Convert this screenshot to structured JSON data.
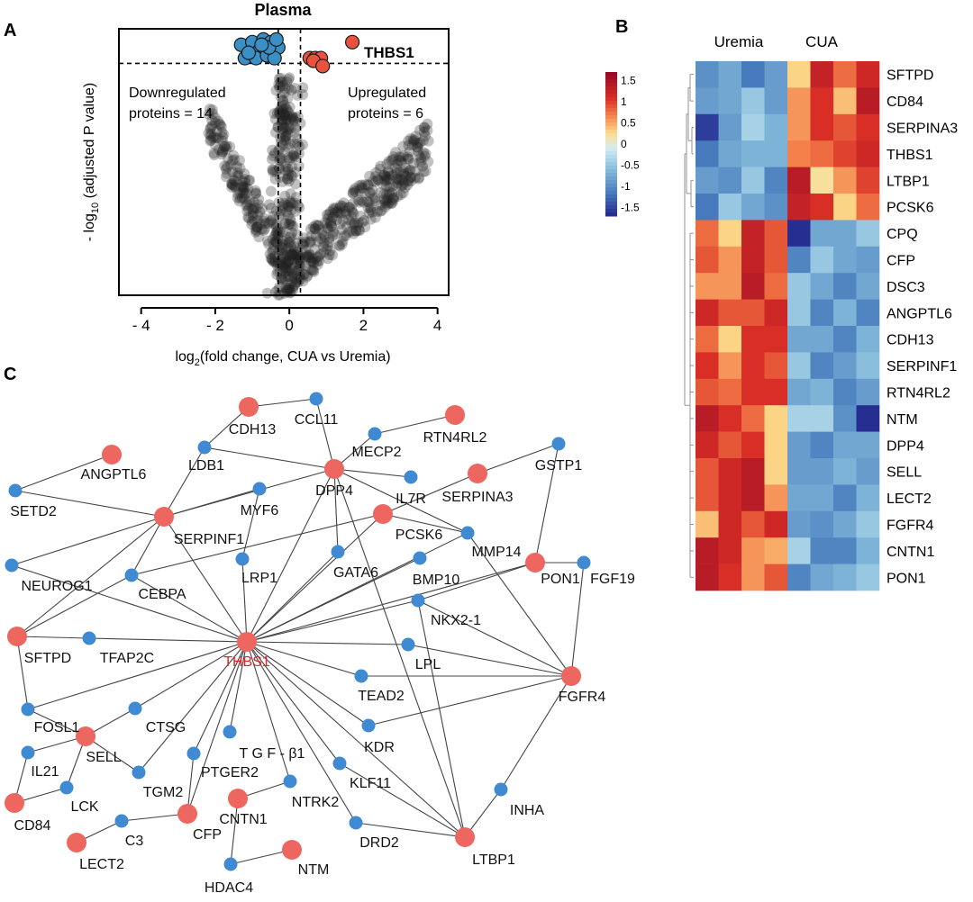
{
  "panels": {
    "A": "A",
    "B": "B",
    "C": "C"
  },
  "volcano": {
    "title": "Plasma",
    "ylabel_main": "- log",
    "ylabel_sub": "10",
    "ylabel_rest": " (adjusted P value)",
    "xlabel_main": "log",
    "xlabel_sub": "2",
    "xlabel_rest": "(fold change, CUA vs Uremia)",
    "down_text_1": "Downregulated",
    "down_text_2": "proteins = 14",
    "up_text_1": "Upregulated",
    "up_text_2": "proteins = 6",
    "highlight_label": "THBS1",
    "colors": {
      "down": "#3a8fc4",
      "up": "#e8523f",
      "bg_point": "#222222"
    }
  },
  "chart_data": [
    {
      "type": "scatter",
      "title": "Plasma",
      "xlabel": "log2(fold change, CUA vs Uremia)",
      "ylabel": "- log10 (adjusted P value)",
      "xlim": [
        -4.6,
        4.3
      ],
      "ylim": [
        0,
        10
      ],
      "x_ticks": [
        -4,
        -2,
        0,
        2,
        4
      ],
      "x_tick_labels": [
        "- 4",
        "- 2",
        "0",
        "2",
        "4"
      ],
      "significance_threshold_y": 8.7,
      "fold_change_thresholds_x": [
        -0.3,
        0.3
      ],
      "series": [
        {
          "name": "Downregulated",
          "points": [
            [
              -1.3,
              9.4
            ],
            [
              -1.0,
              9.5
            ],
            [
              -0.7,
              9.6
            ],
            [
              -0.5,
              9.5
            ],
            [
              -0.3,
              9.3
            ],
            [
              -0.8,
              9.2
            ],
            [
              -1.2,
              8.9
            ],
            [
              -0.9,
              8.9
            ],
            [
              -0.6,
              9.0
            ],
            [
              -0.4,
              8.9
            ],
            [
              -1.1,
              9.1
            ],
            [
              -0.55,
              9.3
            ],
            [
              -0.35,
              9.6
            ],
            [
              -0.75,
              9.4
            ]
          ]
        },
        {
          "name": "Upregulated",
          "points": [
            [
              0.55,
              8.9
            ],
            [
              0.7,
              8.9
            ],
            [
              0.85,
              8.9
            ],
            [
              0.65,
              8.8
            ],
            [
              0.9,
              8.6
            ],
            [
              1.7,
              9.5
            ]
          ]
        }
      ],
      "annotations": [
        "Downregulated proteins = 14",
        "Upregulated proteins = 6",
        "THBS1"
      ]
    },
    {
      "type": "heatmap",
      "column_groups": [
        "Uremia",
        "CUA"
      ],
      "columns_per_group": 4,
      "rows": [
        "SFTPD",
        "CD84",
        "SERPINA3",
        "THBS1",
        "LTBP1",
        "PCSK6",
        "CPQ",
        "CFP",
        "DSC3",
        "ANGPTL6",
        "CDH13",
        "SERPINF1",
        "RTN4RL2",
        "NTM",
        "DPP4",
        "SELL",
        "LECT2",
        "FGFR4",
        "CNTN1",
        "PON1"
      ],
      "values": [
        [
          -1.0,
          -0.8,
          -1.2,
          -0.9,
          0.3,
          1.3,
          0.8,
          1.2
        ],
        [
          -0.9,
          -0.8,
          -0.5,
          -0.9,
          0.6,
          1.1,
          0.4,
          1.4
        ],
        [
          -1.6,
          -0.9,
          -0.4,
          -0.7,
          0.6,
          1.1,
          0.9,
          1.1
        ],
        [
          -1.2,
          -0.8,
          -0.7,
          -0.7,
          0.7,
          0.8,
          1.0,
          1.2
        ],
        [
          -0.9,
          -1.0,
          -0.5,
          -1.1,
          1.4,
          0.2,
          0.6,
          1.0
        ],
        [
          -1.2,
          -0.5,
          -0.8,
          -1.0,
          1.3,
          1.1,
          0.3,
          0.8
        ],
        [
          0.8,
          0.3,
          1.3,
          0.9,
          -1.7,
          -0.8,
          -0.8,
          -0.5
        ],
        [
          0.9,
          0.6,
          1.3,
          0.9,
          -1.1,
          -0.5,
          -0.8,
          -0.9
        ],
        [
          0.6,
          0.6,
          1.4,
          0.8,
          -0.5,
          -0.8,
          -1.1,
          -0.8
        ],
        [
          1.2,
          0.9,
          0.9,
          1.2,
          -0.5,
          -1.1,
          -0.7,
          -1.1
        ],
        [
          0.8,
          0.3,
          1.1,
          1.1,
          -0.8,
          -0.8,
          -1.1,
          -0.7
        ],
        [
          1.1,
          0.6,
          1.1,
          0.9,
          -0.5,
          -1.1,
          -0.9,
          -0.6
        ],
        [
          0.9,
          0.8,
          1.1,
          1.1,
          -0.8,
          -0.7,
          -1.1,
          -0.9
        ],
        [
          1.4,
          1.1,
          0.8,
          0.3,
          -0.4,
          -0.4,
          -1.0,
          -1.8
        ],
        [
          1.2,
          0.9,
          1.1,
          0.3,
          -0.9,
          -1.1,
          -0.8,
          -0.8
        ],
        [
          0.9,
          1.2,
          1.4,
          0.3,
          -0.9,
          -0.9,
          -0.7,
          -0.9
        ],
        [
          0.9,
          1.2,
          1.4,
          0.6,
          -0.8,
          -0.8,
          -1.1,
          -0.7
        ],
        [
          0.4,
          1.2,
          0.9,
          1.2,
          -0.9,
          -1.0,
          -0.8,
          -0.5
        ],
        [
          1.4,
          1.2,
          0.6,
          0.5,
          -0.4,
          -1.1,
          -1.1,
          -0.7
        ],
        [
          1.4,
          1.1,
          0.6,
          0.9,
          -1.1,
          -0.8,
          -0.7,
          -0.5
        ]
      ],
      "legend_ticks": [
        "1.5",
        "1",
        "0.5",
        "0",
        "-0.5",
        "-1",
        "-1.5"
      ],
      "legend_range": [
        -1.7,
        1.7
      ]
    }
  ],
  "network": {
    "center": "THBS1",
    "colors": {
      "red": "#ee6660",
      "blue": "#3f8ad3",
      "center_label": "#e8202a",
      "edge": "#444444"
    },
    "nodes": [
      {
        "id": "THBS1",
        "type": "red",
        "label": "THBS1"
      },
      {
        "id": "CDH13",
        "type": "red",
        "label": "CDH13"
      },
      {
        "id": "CCL11",
        "type": "blue",
        "label": "CCL11"
      },
      {
        "id": "RTN4RL2",
        "type": "red",
        "label": "RTN4RL2"
      },
      {
        "id": "MECP2",
        "type": "blue",
        "label": "MECP2"
      },
      {
        "id": "ANGPTL6",
        "type": "red",
        "label": "ANGPTL6"
      },
      {
        "id": "LDB1",
        "type": "blue",
        "label": "LDB1"
      },
      {
        "id": "DPP4",
        "type": "red",
        "label": "DPP4"
      },
      {
        "id": "IL7R",
        "type": "blue",
        "label": "IL7R"
      },
      {
        "id": "GSTP1",
        "type": "blue",
        "label": "GSTP1"
      },
      {
        "id": "SERPINA3",
        "type": "red",
        "label": "SERPINA3"
      },
      {
        "id": "SETD2",
        "type": "blue",
        "label": "SETD2"
      },
      {
        "id": "MYF6",
        "type": "blue",
        "label": "MYF6"
      },
      {
        "id": "SERPINF1",
        "type": "red",
        "label": "SERPINF1"
      },
      {
        "id": "PCSK6",
        "type": "red",
        "label": "PCSK6"
      },
      {
        "id": "MMP14",
        "type": "blue",
        "label": "MMP14"
      },
      {
        "id": "GATA6",
        "type": "blue",
        "label": "GATA6"
      },
      {
        "id": "LRP1",
        "type": "blue",
        "label": "LRP1"
      },
      {
        "id": "BMP10",
        "type": "blue",
        "label": "BMP10"
      },
      {
        "id": "PON1",
        "type": "red",
        "label": "PON1"
      },
      {
        "id": "FGF19",
        "type": "blue",
        "label": "FGF19"
      },
      {
        "id": "NEUROG1",
        "type": "blue",
        "label": "NEUROG1"
      },
      {
        "id": "CEBPA",
        "type": "blue",
        "label": "CEBPA"
      },
      {
        "id": "NKX2-1",
        "type": "blue",
        "label": "NKX2-1"
      },
      {
        "id": "SFTPD",
        "type": "red",
        "label": "SFTPD"
      },
      {
        "id": "TFAP2C",
        "type": "blue",
        "label": "TFAP2C"
      },
      {
        "id": "LPL",
        "type": "blue",
        "label": "LPL"
      },
      {
        "id": "FGFR4",
        "type": "red",
        "label": "FGFR4"
      },
      {
        "id": "TEAD2",
        "type": "blue",
        "label": "TEAD2"
      },
      {
        "id": "FOSL1",
        "type": "blue",
        "label": "FOSL1"
      },
      {
        "id": "CTSG",
        "type": "blue",
        "label": "CTSG"
      },
      {
        "id": "SELL",
        "type": "red",
        "label": "SELL"
      },
      {
        "id": "IL21",
        "type": "blue",
        "label": "IL21"
      },
      {
        "id": "KDR",
        "type": "blue",
        "label": "KDR"
      },
      {
        "id": "TGF-b1",
        "type": "blue",
        "label": "T G F - β1"
      },
      {
        "id": "TGM2",
        "type": "blue",
        "label": "TGM2"
      },
      {
        "id": "PTGER2",
        "type": "blue",
        "label": "PTGER2"
      },
      {
        "id": "KLF11",
        "type": "blue",
        "label": "KLF11"
      },
      {
        "id": "LCK",
        "type": "blue",
        "label": "LCK"
      },
      {
        "id": "CD84",
        "type": "red",
        "label": "CD84"
      },
      {
        "id": "NTRK2",
        "type": "blue",
        "label": "NTRK2"
      },
      {
        "id": "INHA",
        "type": "blue",
        "label": "INHA"
      },
      {
        "id": "CNTN1",
        "type": "red",
        "label": "CNTN1"
      },
      {
        "id": "CFP",
        "type": "red",
        "label": "CFP"
      },
      {
        "id": "C3",
        "type": "blue",
        "label": "C3"
      },
      {
        "id": "DRD2",
        "type": "blue",
        "label": "DRD2"
      },
      {
        "id": "LTBP1",
        "type": "red",
        "label": "LTBP1"
      },
      {
        "id": "LECT2",
        "type": "red",
        "label": "LECT2"
      },
      {
        "id": "NTM",
        "type": "red",
        "label": "NTM"
      },
      {
        "id": "HDAC4",
        "type": "blue",
        "label": "HDAC4"
      }
    ],
    "edges": [
      [
        "CDH13",
        "CCL11"
      ],
      [
        "CDH13",
        "LDB1"
      ],
      [
        "CCL11",
        "DPP4"
      ],
      [
        "MECP2",
        "RTN4RL2"
      ],
      [
        "MECP2",
        "DPP4"
      ],
      [
        "ANGPTL6",
        "SETD2"
      ],
      [
        "LDB1",
        "DPP4"
      ],
      [
        "LDB1",
        "SERPINF1"
      ],
      [
        "DPP4",
        "SERPINF1"
      ],
      [
        "DPP4",
        "IL7R"
      ],
      [
        "DPP4",
        "GATA6"
      ],
      [
        "DPP4",
        "THBS1"
      ],
      [
        "DPP4",
        "MMP14"
      ],
      [
        "DPP4",
        "LTBP1"
      ],
      [
        "GSTP1",
        "SERPINA3"
      ],
      [
        "GSTP1",
        "PON1"
      ],
      [
        "SERPINA3",
        "PCSK6"
      ],
      [
        "SETD2",
        "SERPINF1"
      ],
      [
        "MYF6",
        "SERPINF1"
      ],
      [
        "MYF6",
        "LRP1"
      ],
      [
        "SERPINF1",
        "THBS1"
      ],
      [
        "SERPINF1",
        "CEBPA"
      ],
      [
        "SERPINF1",
        "NEUROG1"
      ],
      [
        "SERPINF1",
        "SFTPD"
      ],
      [
        "PCSK6",
        "MMP14"
      ],
      [
        "PCSK6",
        "THBS1"
      ],
      [
        "PCSK6",
        "CEBPA"
      ],
      [
        "MMP14",
        "FGFR4"
      ],
      [
        "LRP1",
        "THBS1"
      ],
      [
        "BMP10",
        "THBS1"
      ],
      [
        "PON1",
        "FGF19"
      ],
      [
        "PON1",
        "THBS1"
      ],
      [
        "PON1",
        "NKX2-1"
      ],
      [
        "FGF19",
        "FGFR4"
      ],
      [
        "NEUROG1",
        "THBS1"
      ],
      [
        "CEBPA",
        "SFTPD"
      ],
      [
        "CEBPA",
        "THBS1"
      ],
      [
        "NKX2-1",
        "THBS1"
      ],
      [
        "NKX2-1",
        "FGFR4"
      ],
      [
        "NKX2-1",
        "LTBP1"
      ],
      [
        "SFTPD",
        "TFAP2C"
      ],
      [
        "SFTPD",
        "FOSL1"
      ],
      [
        "TFAP2C",
        "THBS1"
      ],
      [
        "LPL",
        "THBS1"
      ],
      [
        "LPL",
        "FGFR4"
      ],
      [
        "TEAD2",
        "FGFR4"
      ],
      [
        "KDR",
        "FGFR4"
      ],
      [
        "INHA",
        "FGFR4"
      ],
      [
        "INHA",
        "LTBP1"
      ],
      [
        "FOSL1",
        "THBS1"
      ],
      [
        "FOSL1",
        "SELL"
      ],
      [
        "CTSG",
        "THBS1"
      ],
      [
        "CTSG",
        "SELL"
      ],
      [
        "SELL",
        "IL21"
      ],
      [
        "SELL",
        "LCK"
      ],
      [
        "SELL",
        "TGM2"
      ],
      [
        "IL21",
        "CD84"
      ],
      [
        "KDR",
        "THBS1"
      ],
      [
        "TGF-b1",
        "THBS1"
      ],
      [
        "TGM2",
        "THBS1"
      ],
      [
        "PTGER2",
        "THBS1"
      ],
      [
        "PTGER2",
        "CFP"
      ],
      [
        "KLF11",
        "THBS1"
      ],
      [
        "KLF11",
        "LTBP1"
      ],
      [
        "LCK",
        "CD84"
      ],
      [
        "NTRK2",
        "THBS1"
      ],
      [
        "NTRK2",
        "CNTN1"
      ],
      [
        "CNTN1",
        "HDAC4"
      ],
      [
        "CFP",
        "C3"
      ],
      [
        "CFP",
        "THBS1"
      ],
      [
        "C3",
        "LECT2"
      ],
      [
        "DRD2",
        "THBS1"
      ],
      [
        "DRD2",
        "LTBP1"
      ],
      [
        "LTBP1",
        "THBS1"
      ],
      [
        "HDAC4",
        "NTM"
      ],
      [
        "GATA6",
        "THBS1"
      ],
      [
        "MMP14",
        "THBS1"
      ],
      [
        "TEAD2",
        "THBS1"
      ]
    ]
  }
}
